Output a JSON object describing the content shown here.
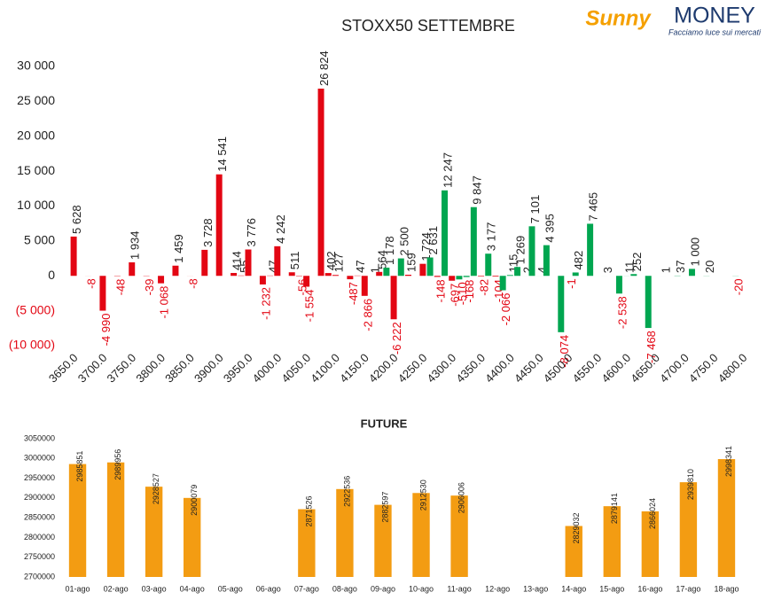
{
  "logo": {
    "sunny": "Sunny",
    "money": "MONEY",
    "tagline": "Facciamo luce sui mercati"
  },
  "chart_data": [
    {
      "type": "bar",
      "title": "STOXX50 SETTEMBRE",
      "categories": [
        "3650.0",
        null,
        null,
        null,
        "3700.0",
        null,
        null,
        null,
        "3750.0",
        null,
        null,
        null,
        "3800.0",
        null,
        null,
        null,
        "3850.0",
        null,
        null,
        null,
        "3900.0",
        null,
        null,
        null,
        "3950.0",
        null,
        null,
        null,
        "4000.0",
        null,
        null,
        null,
        "4050.0",
        null,
        null,
        null,
        "4100.0",
        null,
        null,
        null,
        "4150.0",
        null,
        null,
        null,
        "4200.0",
        null,
        null,
        null,
        "4250.0",
        null,
        null,
        null,
        "4300.0",
        null,
        null,
        null,
        "4350.0",
        null,
        null,
        null,
        "4400.0",
        null,
        null,
        null,
        "4450.0",
        null,
        null,
        null,
        "4500.0",
        null,
        null,
        null,
        "4550.0",
        null,
        null,
        null,
        "4600.0",
        null,
        null,
        null,
        "4650.0",
        null,
        null,
        null,
        "4700.0",
        null,
        null,
        null,
        "4750.0",
        null,
        null,
        null,
        "4800.0"
      ],
      "values": [
        5628,
        null,
        -8,
        null,
        -4990,
        null,
        -48,
        null,
        1934,
        null,
        -39,
        null,
        -1068,
        null,
        1459,
        null,
        -8,
        null,
        3728,
        null,
        14541,
        null,
        414,
        55,
        3776,
        null,
        -1232,
        47,
        4242,
        null,
        511,
        -56,
        -1554,
        null,
        26824,
        402,
        127,
        null,
        -487,
        47,
        -2866,
        1,
        564,
        1178,
        -6222,
        2500,
        159,
        null,
        1724,
        2631,
        -148,
        12247,
        -697,
        -510,
        -168,
        9847,
        -82,
        3177,
        -104,
        -2066,
        115,
        1269,
        2,
        7101,
        4,
        4395,
        null,
        -8074,
        -1,
        482,
        null,
        7465,
        null,
        3,
        null,
        -2538,
        11,
        252,
        null,
        -7468,
        null,
        1,
        null,
        37,
        null,
        1000,
        null,
        20,
        null,
        null,
        null,
        -20,
        null
      ],
      "value_labels": [
        "5 628",
        null,
        "-8",
        null,
        "-4 990",
        null,
        "-48",
        null,
        "1 934",
        null,
        "-39",
        null,
        "-1 068",
        null,
        "1 459",
        null,
        "-8",
        null,
        "3 728",
        null,
        "14 541",
        null,
        "414",
        "55",
        "3 776",
        null,
        "-1 232",
        "47",
        "4 242",
        null,
        "511",
        "-56",
        "-1 554",
        null,
        "26 824",
        "402",
        "127",
        null,
        "-487",
        "47",
        "-2 866",
        "1",
        "564",
        "1 178",
        "-6 222",
        "2 500",
        "159",
        null,
        "1 724",
        "2 631",
        "-148",
        "12 247",
        "-697",
        "-510",
        "-168",
        "9 847",
        "-82",
        "3 177",
        "-104",
        "-2 066",
        "115",
        "1 269",
        "2",
        "7 101",
        "4",
        "4 395",
        null,
        "-8 074",
        "-1",
        "482",
        null,
        "7 465",
        null,
        "3",
        null,
        "-2 538",
        "11",
        "252",
        null,
        "-7 468",
        null,
        "1",
        null,
        "37",
        null,
        "1 000",
        null,
        "20",
        null,
        null,
        null,
        "-20",
        null
      ],
      "colors": [
        "#e30613",
        null,
        "#e30613",
        null,
        "#e30613",
        null,
        "#e30613",
        null,
        "#e30613",
        null,
        "#e30613",
        null,
        "#e30613",
        null,
        "#e30613",
        null,
        "#e30613",
        null,
        "#e30613",
        null,
        "#e30613",
        null,
        "#e30613",
        "#e30613",
        "#e30613",
        null,
        "#e30613",
        "#e30613",
        "#e30613",
        null,
        "#e30613",
        "#e30613",
        "#e30613",
        null,
        "#e30613",
        "#e30613",
        "#e30613",
        null,
        "#e30613",
        "#e30613",
        "#e30613",
        "#e30613",
        "#e30613",
        "#00a650",
        "#e30613",
        "#00a650",
        "#e30613",
        null,
        "#e30613",
        "#00a650",
        "#e30613",
        "#00a650",
        "#e30613",
        "#00a650",
        "#00a650",
        "#00a650",
        "#e30613",
        "#00a650",
        "#e30613",
        "#00a650",
        "#00a650",
        "#00a650",
        "#00a650",
        "#00a650",
        "#00a650",
        "#00a650",
        null,
        "#00a650",
        "#e30613",
        "#00a650",
        null,
        "#00a650",
        null,
        "#00a650",
        null,
        "#00a650",
        "#00a650",
        "#00a650",
        null,
        "#00a650",
        null,
        "#00a650",
        null,
        "#00a650",
        null,
        "#00a650",
        null,
        "#00a650",
        null,
        null,
        null,
        "#00a650",
        null
      ],
      "ylim": [
        -10000,
        30000
      ],
      "yticks": [
        {
          "value": 30000,
          "label": "30 000"
        },
        {
          "value": 25000,
          "label": "25 000"
        },
        {
          "value": 20000,
          "label": "20 000"
        },
        {
          "value": 15000,
          "label": "15 000"
        },
        {
          "value": 10000,
          "label": "10 000"
        },
        {
          "value": 5000,
          "label": "5 000"
        },
        0,
        {
          "value": -5000,
          "label": "(5 000)"
        },
        {
          "value": -10000,
          "label": "(10 000)"
        }
      ],
      "grid": false
    },
    {
      "type": "bar",
      "title": "FUTURE",
      "categories": [
        "01-ago",
        "02-ago",
        "03-ago",
        "04-ago",
        "05-ago",
        "06-ago",
        "07-ago",
        "08-ago",
        "09-ago",
        "10-ago",
        "11-ago",
        "12-ago",
        "13-ago",
        "14-ago",
        "15-ago",
        "16-ago",
        "17-ago",
        "18-ago"
      ],
      "values": [
        2985851,
        2989956,
        2928527,
        2900079,
        null,
        null,
        2871526,
        2922536,
        2882597,
        2912530,
        2906006,
        null,
        null,
        2829032,
        2879141,
        2866024,
        2939810,
        2998341
      ],
      "color": "#f39c12",
      "ylim": [
        2700000,
        3050000
      ],
      "yticks": [
        3050000,
        3000000,
        2950000,
        2900000,
        2850000,
        2800000,
        2750000,
        2700000
      ],
      "grid": false
    }
  ]
}
